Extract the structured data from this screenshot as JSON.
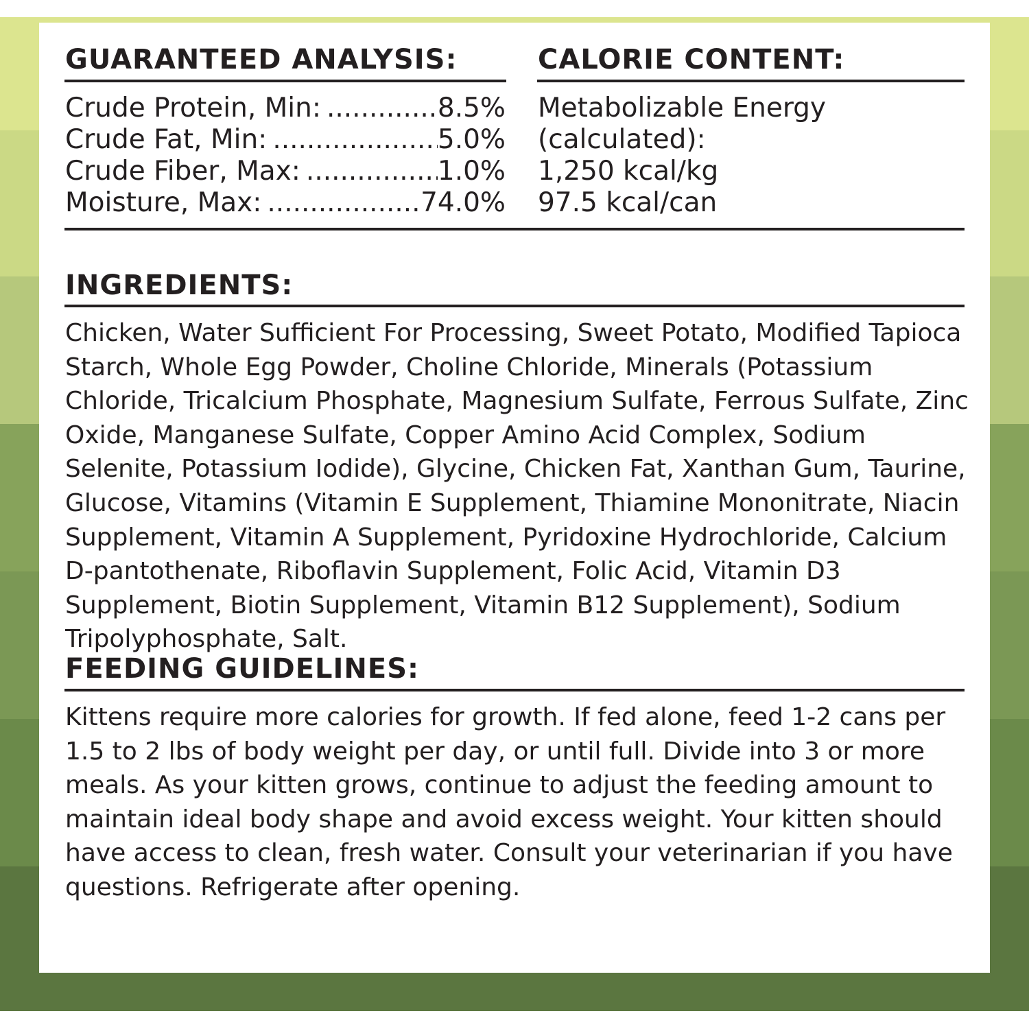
{
  "colors": {
    "stripes": [
      "#dce58f",
      "#cbd985",
      "#b6c87c",
      "#87a35b",
      "#7b9855",
      "#6b8a4a",
      "#5b7640"
    ],
    "text": "#231f20"
  },
  "guaranteed_analysis": {
    "title": "GUARANTEED ANALYSIS:",
    "rows": [
      {
        "label": "Crude Protein, Min:",
        "value": "8.5%"
      },
      {
        "label": "Crude Fat, Min:",
        "value": "5.0%"
      },
      {
        "label": "Crude Fiber, Max:",
        "value": "1.0%"
      },
      {
        "label": "Moisture, Max:",
        "value": "74.0%"
      }
    ]
  },
  "calorie_content": {
    "title": "CALORIE CONTENT:",
    "lines": [
      "Metabolizable Energy",
      "(calculated):",
      "1,250 kcal/kg",
      "97.5 kcal/can"
    ]
  },
  "ingredients": {
    "title": "INGREDIENTS:",
    "text": "Chicken, Water Sufficient For Processing, Sweet Potato, Modified Tapioca Starch, Whole Egg Powder, Choline Chloride, Minerals (Potassium Chloride, Tricalcium Phosphate, Magnesium Sulfate, Ferrous Sulfate, Zinc Oxide, Manganese Sulfate, Copper Amino Acid Complex, Sodium Selenite, Potassium Iodide), Glycine, Chicken Fat, Xanthan Gum, Taurine, Glucose, Vitamins (Vitamin E Supplement, Thiamine Mononitrate, Niacin Supplement, Vitamin A Supplement, Pyridoxine Hydrochloride, Calcium D-pantothenate, Riboflavin Supplement, Folic Acid, Vitamin D3 Supplement, Biotin Supplement, Vitamin B12 Supplement), Sodium Tripolyphosphate, Salt."
  },
  "feeding_guidelines": {
    "title": "FEEDING GUIDELINES:",
    "text": "Kittens require more calories for growth. If fed alone, feed 1-2 cans per 1.5 to 2 lbs of body weight per day, or until full. Divide into 3 or more meals. As your kitten grows, continue to adjust the feeding amount to maintain ideal body shape and avoid excess weight. Your kitten should have access to clean, fresh water. Consult your veterinarian if you have questions. Refrigerate after opening."
  }
}
